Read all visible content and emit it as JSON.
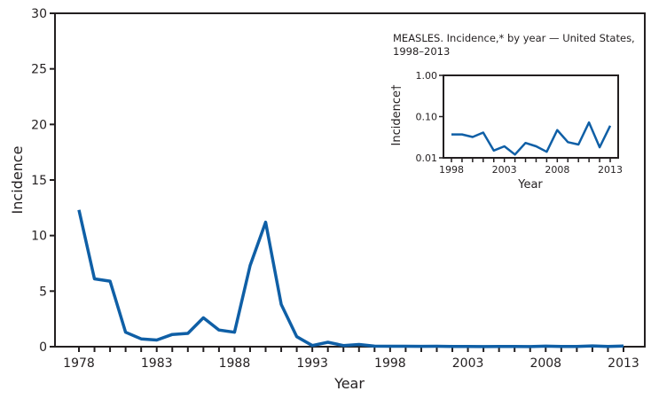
{
  "chart_data": [
    {
      "type": "line",
      "title": "",
      "xlabel": "Year",
      "ylabel": "Incidence",
      "xlim": [
        1978,
        2013
      ],
      "ylim": [
        0,
        30
      ],
      "yticks": [
        0,
        5,
        10,
        15,
        20,
        25,
        30
      ],
      "ytick_labels": [
        "0",
        "5",
        "10",
        "15",
        "20",
        "25",
        "30"
      ],
      "xtick_labels": [
        "1978",
        "1983",
        "1988",
        "1993",
        "1998",
        "2003",
        "2008",
        "2013"
      ],
      "xtick_label_years": [
        1978,
        1983,
        1988,
        1993,
        1998,
        2003,
        2008,
        2013
      ],
      "grid": false,
      "color": "#0f5fa6",
      "x": [
        1978,
        1979,
        1980,
        1981,
        1982,
        1983,
        1984,
        1985,
        1986,
        1987,
        1988,
        1989,
        1990,
        1991,
        1992,
        1993,
        1994,
        1995,
        1996,
        1997,
        1998,
        1999,
        2000,
        2001,
        2002,
        2003,
        2004,
        2005,
        2006,
        2007,
        2008,
        2009,
        2010,
        2011,
        2012,
        2013
      ],
      "values": [
        12.3,
        6.1,
        5.9,
        1.3,
        0.7,
        0.6,
        1.1,
        1.2,
        2.6,
        1.5,
        1.3,
        7.3,
        11.2,
        3.8,
        0.9,
        0.1,
        0.4,
        0.1,
        0.2,
        0.05,
        0.04,
        0.04,
        0.03,
        0.04,
        0.02,
        0.02,
        0.01,
        0.02,
        0.02,
        0.01,
        0.05,
        0.02,
        0.02,
        0.07,
        0.02,
        0.06
      ]
    },
    {
      "type": "line",
      "title": "MEASLES. Incidence,* by year — United States,",
      "title_line2": "1998–2013",
      "xlabel": "Year",
      "ylabel": "Incidence†",
      "yscale": "log",
      "xlim": [
        1998,
        2013
      ],
      "ylim": [
        0.01,
        1.0
      ],
      "ytick_values": [
        0.01,
        0.1,
        1.0
      ],
      "ytick_labels": [
        "0.01",
        "0.10",
        "1.00"
      ],
      "xtick_labels": [
        "1998",
        "2003",
        "2008",
        "2013"
      ],
      "xtick_label_years": [
        1998,
        2003,
        2008,
        2013
      ],
      "grid": false,
      "legend": "none",
      "placement": "top-right inset",
      "color": "#0f5fa6",
      "x": [
        1998,
        1999,
        2000,
        2001,
        2002,
        2003,
        2004,
        2005,
        2006,
        2007,
        2008,
        2009,
        2010,
        2011,
        2012,
        2013
      ],
      "values": [
        0.037,
        0.037,
        0.032,
        0.041,
        0.015,
        0.019,
        0.012,
        0.023,
        0.019,
        0.014,
        0.047,
        0.024,
        0.021,
        0.072,
        0.018,
        0.06
      ]
    }
  ]
}
